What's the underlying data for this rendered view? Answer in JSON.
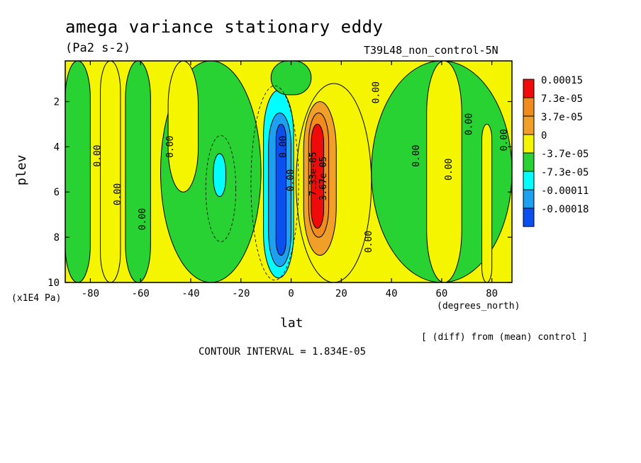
{
  "chart_data": {
    "type": "heatmap",
    "title": "amega variance stationary eddy",
    "units": "(Pa2 s-2)",
    "run_label": "T39L48_non_control-5N",
    "xlabel": "lat",
    "x_units": "(degrees_north)",
    "ylabel": "plev",
    "y_units": "(x1E4 Pa)",
    "note": "[ (diff) from (mean) control ]",
    "contour_interval": "CONTOUR INTERVAL = 1.834E-05",
    "xlim": [
      -90,
      88
    ],
    "ylim": [
      10,
      0.2
    ],
    "y_inverted": true,
    "x_ticks": [
      "-80",
      "-60",
      "-40",
      "-20",
      "0",
      "20",
      "40",
      "60",
      "80"
    ],
    "x_tick_values": [
      -80,
      -60,
      -40,
      -20,
      0,
      20,
      40,
      60,
      80
    ],
    "y_ticks": [
      "2",
      "4",
      "6",
      "8",
      "10"
    ],
    "y_tick_values": [
      2,
      4,
      6,
      8,
      10
    ],
    "colorbar": {
      "labels": [
        "0.00015",
        "7.3e-05",
        "3.7e-05",
        "0",
        "-3.7e-05",
        "-7.3e-05",
        "-0.00011",
        "-0.00018"
      ],
      "colors": [
        "#f00a0a",
        "#f08c1e",
        "#f0a028",
        "#f5f500",
        "#28d232",
        "#00ffff",
        "#1ea0f0",
        "#0a50f0"
      ]
    },
    "fill_colors": {
      "background": "#f5f500",
      "neg1": "#28d232",
      "neg2": "#00ffff",
      "neg3": "#1ea0f0",
      "neg4": "#0a50f0",
      "pos1": "#f0a028",
      "pos2": "#f08c1e",
      "pos3": "#f00a0a"
    },
    "negative_bands": [
      {
        "x_range": [
          -90,
          -80
        ],
        "y_range": [
          0.2,
          10
        ],
        "level": 1
      },
      {
        "x_range": [
          -66,
          -56
        ],
        "y_range": [
          0.2,
          10
        ],
        "level": 1
      },
      {
        "x_range": [
          -52,
          -12
        ],
        "y_range": [
          0.2,
          10
        ],
        "level": 1
      },
      {
        "x_range": [
          -11,
          1
        ],
        "y_range": [
          1.5,
          9.8
        ],
        "level": 2
      },
      {
        "x_range": [
          -9,
          0
        ],
        "y_range": [
          2.5,
          9.3
        ],
        "level": 3
      },
      {
        "x_range": [
          -6,
          -2
        ],
        "y_range": [
          3.0,
          8.8
        ],
        "level": 4
      },
      {
        "x_range": [
          -31,
          -26
        ],
        "y_range": [
          4.3,
          6.2
        ],
        "level": 2
      },
      {
        "x_range": [
          32,
          88
        ],
        "y_range": [
          0.2,
          10
        ],
        "level": 1
      },
      {
        "x_range": [
          -8,
          8
        ],
        "y_range": [
          0.2,
          1.7
        ],
        "level": 1
      }
    ],
    "positive_bands": [
      {
        "x_range": [
          -76,
          -68
        ],
        "y_range": [
          0.2,
          10
        ],
        "level": 0
      },
      {
        "x_range": [
          -49,
          -37
        ],
        "y_range": [
          0.2,
          6.0
        ],
        "level": 0
      },
      {
        "x_range": [
          2,
          32
        ],
        "y_range": [
          1.2,
          10
        ],
        "level": 0
      },
      {
        "x_range": [
          54,
          68
        ],
        "y_range": [
          0.2,
          10
        ],
        "level": 0
      },
      {
        "x_range": [
          76,
          80
        ],
        "y_range": [
          3.0,
          10
        ],
        "level": 0
      },
      {
        "x_range": [
          5,
          18
        ],
        "y_range": [
          2.0,
          8.8
        ],
        "level": 1
      },
      {
        "x_range": [
          7,
          15
        ],
        "y_range": [
          2.5,
          8.0
        ],
        "level": 2
      },
      {
        "x_range": [
          8,
          13
        ],
        "y_range": [
          3.0,
          7.6
        ],
        "level": 3
      }
    ],
    "contour_labels": [
      {
        "text": "0.00",
        "x": -76,
        "y": 4.4
      },
      {
        "text": "0.00",
        "x": -68,
        "y": 6.1
      },
      {
        "text": "0.00",
        "x": -58,
        "y": 7.2
      },
      {
        "text": "0.00",
        "x": -47,
        "y": 4.0
      },
      {
        "text": "0.00",
        "x": -2,
        "y": 4.0
      },
      {
        "text": "-0.00",
        "x": 1,
        "y": 5.6
      },
      {
        "text": "7.33e-05",
        "x": 10,
        "y": 5.2
      },
      {
        "text": "3.67e-05",
        "x": 14,
        "y": 5.4
      },
      {
        "text": "0.00",
        "x": 35,
        "y": 1.6
      },
      {
        "text": "0.00",
        "x": 32,
        "y": 8.2
      },
      {
        "text": "0.00",
        "x": 51,
        "y": 4.4
      },
      {
        "text": "0.00",
        "x": 64,
        "y": 5.0
      },
      {
        "text": "0.00",
        "x": 72,
        "y": 3.0
      },
      {
        "text": "0.00",
        "x": 86,
        "y": 3.7
      }
    ]
  }
}
